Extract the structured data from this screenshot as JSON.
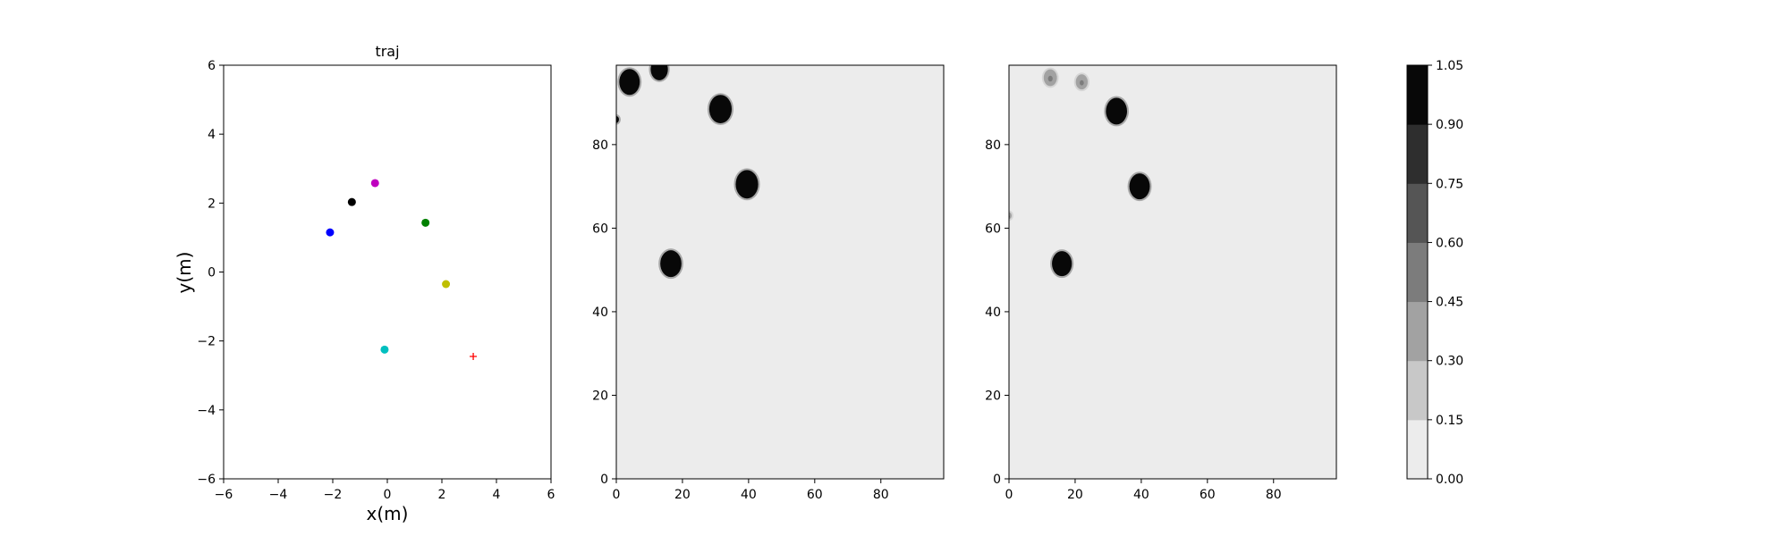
{
  "chart_data": [
    {
      "type": "scatter",
      "title": "traj",
      "xlabel": "x(m)",
      "ylabel": "y(m)",
      "xlim": [
        -6,
        6
      ],
      "ylim": [
        -6,
        6
      ],
      "xticks": [
        -6,
        -4,
        -2,
        0,
        2,
        4,
        6
      ],
      "yticks": [
        -6,
        -4,
        -2,
        0,
        2,
        4,
        6
      ],
      "grid": false,
      "points": [
        {
          "x": -2.1,
          "y": 1.15,
          "color": "#0000ff",
          "marker": "circle"
        },
        {
          "x": -1.3,
          "y": 2.03,
          "color": "#000000",
          "marker": "circle"
        },
        {
          "x": -0.45,
          "y": 2.58,
          "color": "#bf00bf",
          "marker": "circle"
        },
        {
          "x": 1.4,
          "y": 1.43,
          "color": "#008000",
          "marker": "circle"
        },
        {
          "x": 2.15,
          "y": -0.35,
          "color": "#bfbf00",
          "marker": "circle"
        },
        {
          "x": -0.1,
          "y": -2.25,
          "color": "#00bfbf",
          "marker": "circle"
        },
        {
          "x": 3.15,
          "y": -2.45,
          "color": "#ff0000",
          "marker": "plus"
        }
      ]
    },
    {
      "type": "heatmap",
      "xlim": [
        0,
        99
      ],
      "ylim": [
        0,
        99
      ],
      "xticks": [
        0,
        20,
        40,
        60,
        80
      ],
      "yticks": [
        0,
        20,
        40,
        60,
        80
      ],
      "background_value": 0.05,
      "blobs": [
        {
          "x": 4,
          "y": 95,
          "r": 3.1,
          "value": 1.0
        },
        {
          "x": 13,
          "y": 98,
          "r": 2.6,
          "value": 1.0
        },
        {
          "x": 0,
          "y": 86,
          "r": 0.8,
          "value": 1.0
        },
        {
          "x": 31.5,
          "y": 88.5,
          "r": 3.4,
          "value": 1.0
        },
        {
          "x": 39.5,
          "y": 70.5,
          "r": 3.4,
          "value": 1.0
        },
        {
          "x": 16.5,
          "y": 51.5,
          "r": 3.2,
          "value": 1.0
        }
      ]
    },
    {
      "type": "heatmap",
      "xlim": [
        0,
        99
      ],
      "ylim": [
        0,
        99
      ],
      "xticks": [
        0,
        20,
        40,
        60,
        80
      ],
      "yticks": [
        0,
        20,
        40,
        60,
        80
      ],
      "background_value": 0.05,
      "blobs": [
        {
          "x": 12.5,
          "y": 96,
          "r": 2.0,
          "value": 0.3
        },
        {
          "x": 22,
          "y": 95,
          "r": 1.8,
          "value": 0.3
        },
        {
          "x": 32.5,
          "y": 88,
          "r": 3.2,
          "value": 1.0
        },
        {
          "x": 39.5,
          "y": 70,
          "r": 3.1,
          "value": 1.0
        },
        {
          "x": 16,
          "y": 51.5,
          "r": 3.0,
          "value": 1.0
        },
        {
          "x": 0,
          "y": 63,
          "r": 0.8,
          "value": 0.3
        }
      ]
    }
  ],
  "colorbar": {
    "ticks": [
      "0.00",
      "0.15",
      "0.30",
      "0.45",
      "0.60",
      "0.75",
      "0.90",
      "1.05"
    ],
    "levels": [
      "#ececec",
      "#c8c8c8",
      "#a2a2a2",
      "#7c7c7c",
      "#555555",
      "#2e2e2e",
      "#080808"
    ]
  }
}
